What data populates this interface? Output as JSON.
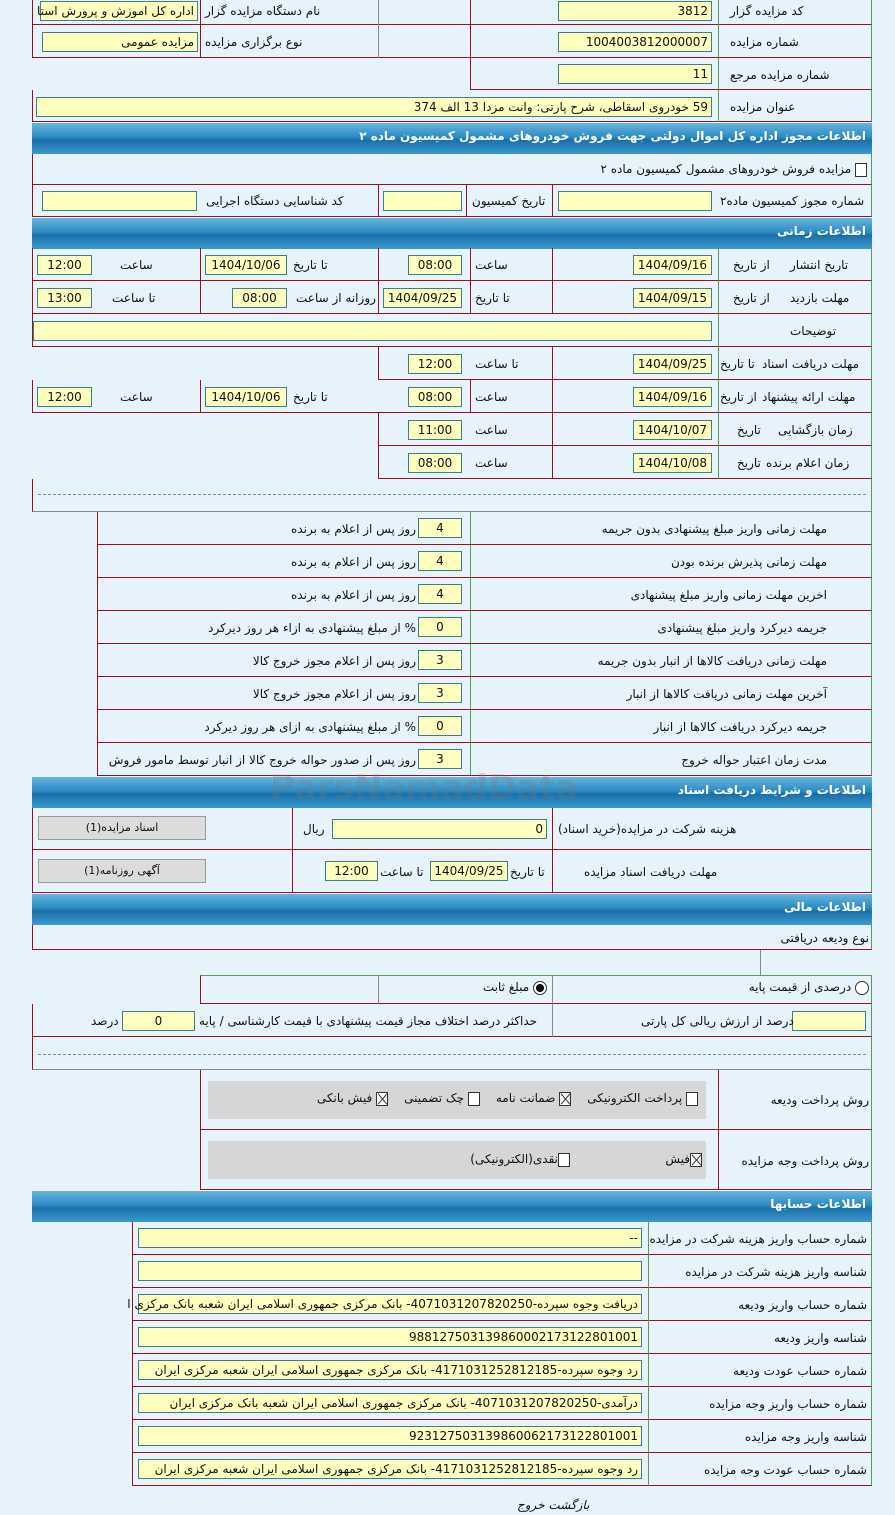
{
  "general": {
    "organizer_code_label": "کد مزایده گزار",
    "organizer_code": "3812",
    "organizer_name_label": "نام دستگاه مزایده گزار",
    "organizer_name": "اداره کل اموزش و پرورش استا",
    "auction_number_label": "شماره مزایده",
    "auction_number": "1004003812000007",
    "auction_type_label": "نوع برگزاری مزایده",
    "auction_type": "مزایده عمومی",
    "ref_number_label": "شماره مزایده مرجع",
    "ref_number": "11",
    "title_label": "عنوان مزایده",
    "title": "59 خودروی اسقاطی، شرح پارتی: وانت مزدا 13 الف 374"
  },
  "commission": {
    "header": "اطلاعات مجوز اداره کل اموال دولتی جهت فروش خودروهای مشمول کمیسیون ماده ۲",
    "checkbox_label": "مزایده فروش خودروهای مشمول کمیسیون ماده ۲",
    "checked": false,
    "permit_label": "شماره مجوز کمیسیون ماده۲",
    "permit": "",
    "date_label": "تاریخ کمیسیون",
    "date": "",
    "exec_id_label": "کد شناسایی دستگاه اجرایی",
    "exec_id": ""
  },
  "timing": {
    "header": "اطلاعات زمانی",
    "from_date": "از تاریخ",
    "to_date": "تا تاریخ",
    "time": "ساعت",
    "to_time": "تا ساعت",
    "date": "تاریخ",
    "daily_from": "روزانه از ساعت",
    "publish_label": "تاریخ انتشار",
    "publish_from": "1404/09/16",
    "publish_from_time": "08:00",
    "publish_to": "1404/10/06",
    "publish_to_time": "12:00",
    "visit_label": "مهلت بازدید",
    "visit_from": "1404/09/15",
    "visit_to": "1404/09/25",
    "visit_daily_from": "08:00",
    "visit_daily_to": "13:00",
    "notes_label": "توضیحات",
    "notes": "",
    "docs_label": "مهلت دریافت اسناد",
    "docs_to": "1404/09/25",
    "docs_to_time": "12:00",
    "offer_label": "مهلت ارائه پیشنهاد",
    "offer_from": "1404/09/16",
    "offer_from_time": "08:00",
    "offer_to": "1404/10/06",
    "offer_to_time": "12:00",
    "opening_label": "زمان بازگشایی",
    "opening_date": "1404/10/07",
    "opening_time": "11:00",
    "winner_label": "زمان اعلام برنده",
    "winner_date": "1404/10/08",
    "winner_time": "08:00"
  },
  "deadlines": [
    {
      "label": "مهلت زمانی واریز مبلغ پیشنهادی بدون جریمه",
      "value": "4",
      "unit": "روز پس از اعلام به برنده"
    },
    {
      "label": "مهلت زمانی پذیرش برنده بودن",
      "value": "4",
      "unit": "روز پس از اعلام به برنده"
    },
    {
      "label": "اخرین مهلت زمانی واریز مبلغ پیشنهادی",
      "value": "4",
      "unit": "روز پس از اعلام به برنده"
    },
    {
      "label": "جریمه دیرکرد واریز مبلغ پیشنهادی",
      "value": "0",
      "unit": "% از مبلغ پیشنهادی به ازاء هر روز دیرکرد"
    },
    {
      "label": "مهلت زمانی دریافت کالاها از انبار بدون جریمه",
      "value": "3",
      "unit": "روز پس از اعلام مجوز خروج کالا"
    },
    {
      "label": "آخرین مهلت زمانی دریافت کالاها از انبار",
      "value": "3",
      "unit": "روز پس از اعلام مجوز خروج کالا"
    },
    {
      "label": "جریمه دیرکرد دریافت کالاها از انبار",
      "value": "0",
      "unit": "% از مبلغ پیشنهادی به ازای هر روز دیرکرد"
    },
    {
      "label": "مدت زمان اعتبار حواله خروج",
      "value": "3",
      "unit": "روز پس از صدور حواله خروج کالا از انبار توسط مامور فروش"
    }
  ],
  "documents": {
    "header": "اطلاعات و شرایط دریافت اسناد",
    "fee_label": "هزینه شرکت در مزایده(خرید اسناد)",
    "fee": "0",
    "currency": "ریال",
    "docs_button": "اسناد مزایده(1)",
    "deadline_label": "مهلت دریافت اسناد مزایده",
    "to_date": "تا تاریخ",
    "date": "1404/09/25",
    "to_time": "تا ساعت",
    "time": "12:00",
    "ad_button": "آگهی روزنامه(1)"
  },
  "finance": {
    "header": "اطلاعات مالی",
    "deposit_type_label": "نوع ودیعه دریافتی",
    "opt_percent": "درصدی از قیمت پایه",
    "opt_fixed": "مبلغ ثابت",
    "selected": "fixed",
    "percent_label": "درصد از ارزش ریالی کل پارتی",
    "percent_value": "",
    "max_diff_label": "حداکثر درصد اختلاف مجاز قیمت پیشنهادی با قیمت کارشناسی / پایه",
    "max_diff": "0",
    "max_diff_unit": "درصد",
    "deposit_method_label": "روش پرداخت ودیعه",
    "deposit_methods": [
      {
        "label": "پرداخت الکترونیکی",
        "checked": false
      },
      {
        "label": "ضمانت نامه",
        "checked": true
      },
      {
        "label": "چک تضمینی",
        "checked": false
      },
      {
        "label": "فیش بانکی",
        "checked": true
      }
    ],
    "payment_method_label": "روش پرداخت وجه مزایده",
    "payment_methods": [
      {
        "label": "فیش",
        "checked": true
      },
      {
        "label": "نقدی(الکترونیکی)",
        "checked": false
      }
    ]
  },
  "accounts": {
    "header": "اطلاعات حسابها",
    "rows": [
      {
        "label": "شماره حساب واریز هزینه شرکت در مزایده",
        "value": "--"
      },
      {
        "label": "شناسه واریز هزینه شرکت در مزایده",
        "value": ""
      },
      {
        "label": "شماره حساب واریز ودیعه",
        "value": "دریافت وجوه سپرده-4071031207820250- بانک مرکزی جمهوری اسلامی ایران شعبه بانک مرکزی ا"
      },
      {
        "label": "شناسه واریز ودیعه",
        "value": "988127503139860002173122801001"
      },
      {
        "label": "شماره حساب عودت ودیعه",
        "value": "رد وجوه سپرده-4171031252812185- بانک مرکزی جمهوری اسلامی ایران شعبه مرکزی ایران"
      },
      {
        "label": "شماره حساب واریز وجه مزایده",
        "value": "درآمدی-4071031207820250- بانک مرکزی جمهوری اسلامی ایران شعبه بانک مرکزی ایران"
      },
      {
        "label": "شناسه واریز وجه مزایده",
        "value": "923127503139860062173122801001"
      },
      {
        "label": "شماره حساب عودت وجه مزایده",
        "value": "رد وجوه سپرده-4171031252812185- بانک مرکزی جمهوری اسلامی ایران شعبه مرکزی ایران"
      }
    ]
  },
  "footer": {
    "back": "بازگشت",
    "exit": "خروج"
  },
  "watermark": "ParsNamadData"
}
